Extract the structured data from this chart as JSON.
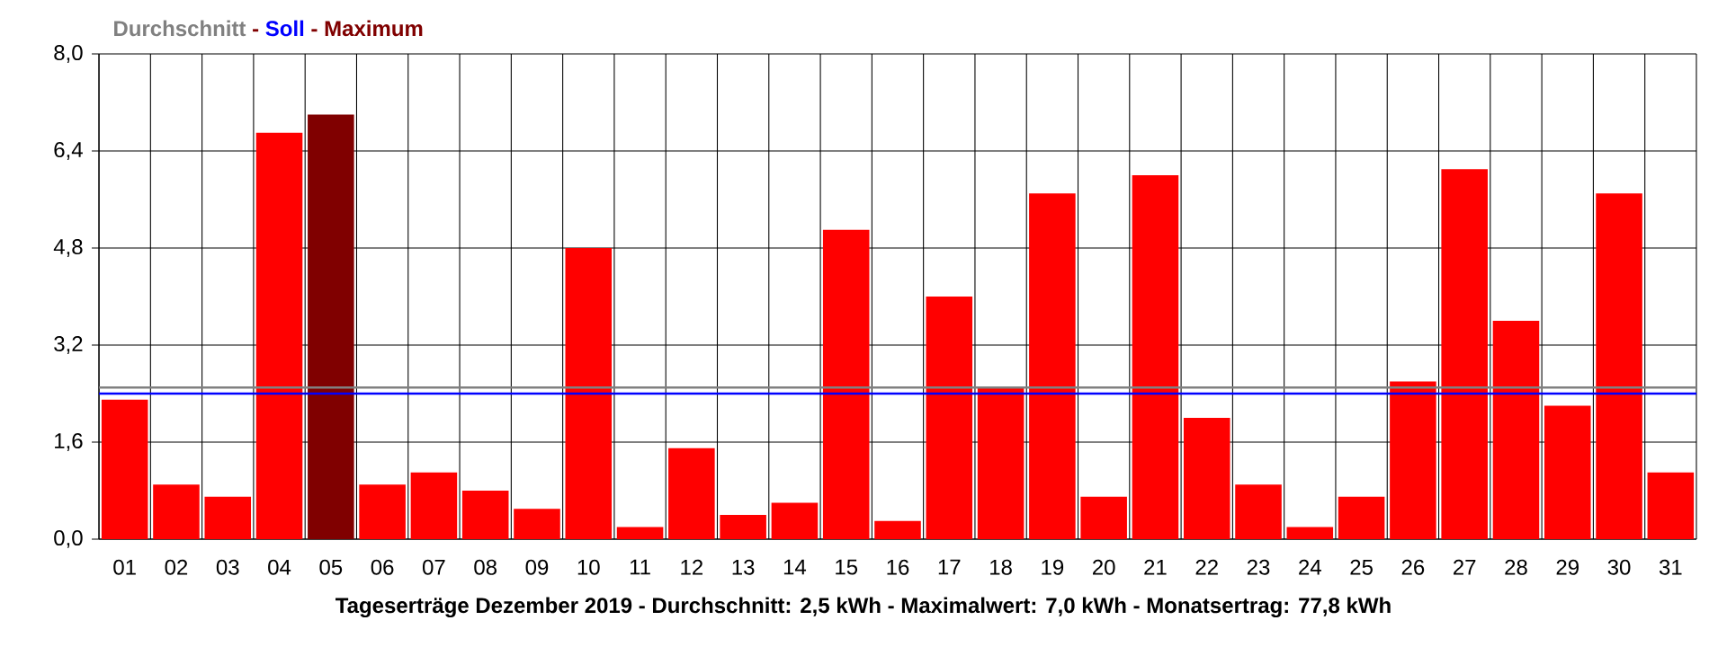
{
  "chart_data": {
    "type": "bar",
    "categories": [
      "01",
      "02",
      "03",
      "04",
      "05",
      "06",
      "07",
      "08",
      "09",
      "10",
      "11",
      "12",
      "13",
      "14",
      "15",
      "16",
      "17",
      "18",
      "19",
      "20",
      "21",
      "22",
      "23",
      "24",
      "25",
      "26",
      "27",
      "28",
      "29",
      "30",
      "31"
    ],
    "values": [
      2.3,
      0.9,
      0.7,
      6.7,
      7.0,
      0.9,
      1.1,
      0.8,
      0.5,
      4.8,
      0.2,
      1.5,
      0.4,
      0.6,
      5.1,
      0.3,
      4.0,
      2.5,
      5.7,
      0.7,
      6.0,
      2.0,
      0.9,
      0.2,
      0.7,
      2.6,
      6.1,
      3.6,
      2.2,
      5.7,
      1.1
    ],
    "colors": [
      "#ff0000",
      "#ff0000",
      "#ff0000",
      "#ff0000",
      "#800000",
      "#ff0000",
      "#ff0000",
      "#ff0000",
      "#ff0000",
      "#ff0000",
      "#ff0000",
      "#ff0000",
      "#ff0000",
      "#ff0000",
      "#ff0000",
      "#ff0000",
      "#ff0000",
      "#ff0000",
      "#ff0000",
      "#ff0000",
      "#ff0000",
      "#ff0000",
      "#ff0000",
      "#ff0000",
      "#ff0000",
      "#ff0000",
      "#ff0000",
      "#ff0000",
      "#ff0000",
      "#ff0000",
      "#ff0000"
    ],
    "ylim": [
      0,
      8.0
    ],
    "yticks": [
      {
        "value": 0,
        "label": "0,0"
      },
      {
        "value": 1.6,
        "label": "1,6"
      },
      {
        "value": 3.2,
        "label": "3,2"
      },
      {
        "value": 4.8,
        "label": "4,8"
      },
      {
        "value": 6.4,
        "label": "6,4"
      },
      {
        "value": 8.0,
        "label": "8,0"
      }
    ],
    "grid": true,
    "ref_lines": [
      {
        "axis": "y",
        "value": 2.5,
        "label": "Durchschnitt",
        "color": "#808080"
      },
      {
        "axis": "y",
        "value": 2.4,
        "label": "Soll",
        "color": "#0000ff"
      }
    ],
    "annotations": [
      "Maximum",
      "Tageserträge Dezember 2019 - Durchschnitt: 2,5 kWh - Maximalwert: 7,0 kWh - Monatsertrag: 77,8 kWh",
      "-",
      "-"
    ]
  }
}
